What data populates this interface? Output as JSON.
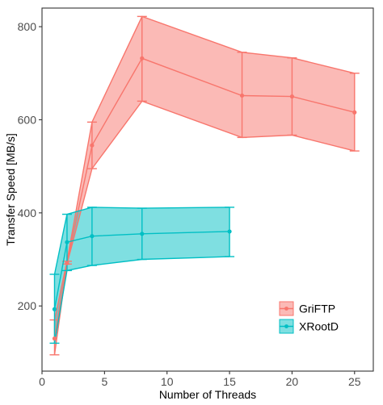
{
  "chart_data": {
    "type": "line",
    "xlabel": "Number of Threads",
    "ylabel": "Transfer Speed [MB/s]",
    "xlim": [
      0,
      26.5
    ],
    "ylim": [
      60,
      840
    ],
    "x_ticks": [
      0,
      5,
      10,
      15,
      20,
      25
    ],
    "y_ticks": [
      200,
      400,
      600,
      800
    ],
    "grid": false,
    "legend_position": "bottom-right",
    "series": [
      {
        "name": "GriFTP",
        "color": "#F8766D",
        "x": [
          1,
          2,
          4,
          8,
          16,
          20,
          25
        ],
        "values": [
          130,
          292,
          545,
          732,
          652,
          650,
          616
        ],
        "lower": [
          95,
          290,
          495,
          640,
          562,
          567,
          533
        ],
        "upper": [
          170,
          296,
          595,
          822,
          745,
          733,
          700
        ]
      },
      {
        "name": "XRootD",
        "color": "#00BFC4",
        "x": [
          1,
          2,
          4,
          8,
          15
        ],
        "values": [
          193,
          337,
          350,
          355,
          360
        ],
        "lower": [
          120,
          276,
          287,
          300,
          306
        ],
        "upper": [
          268,
          397,
          412,
          410,
          412
        ]
      }
    ]
  }
}
